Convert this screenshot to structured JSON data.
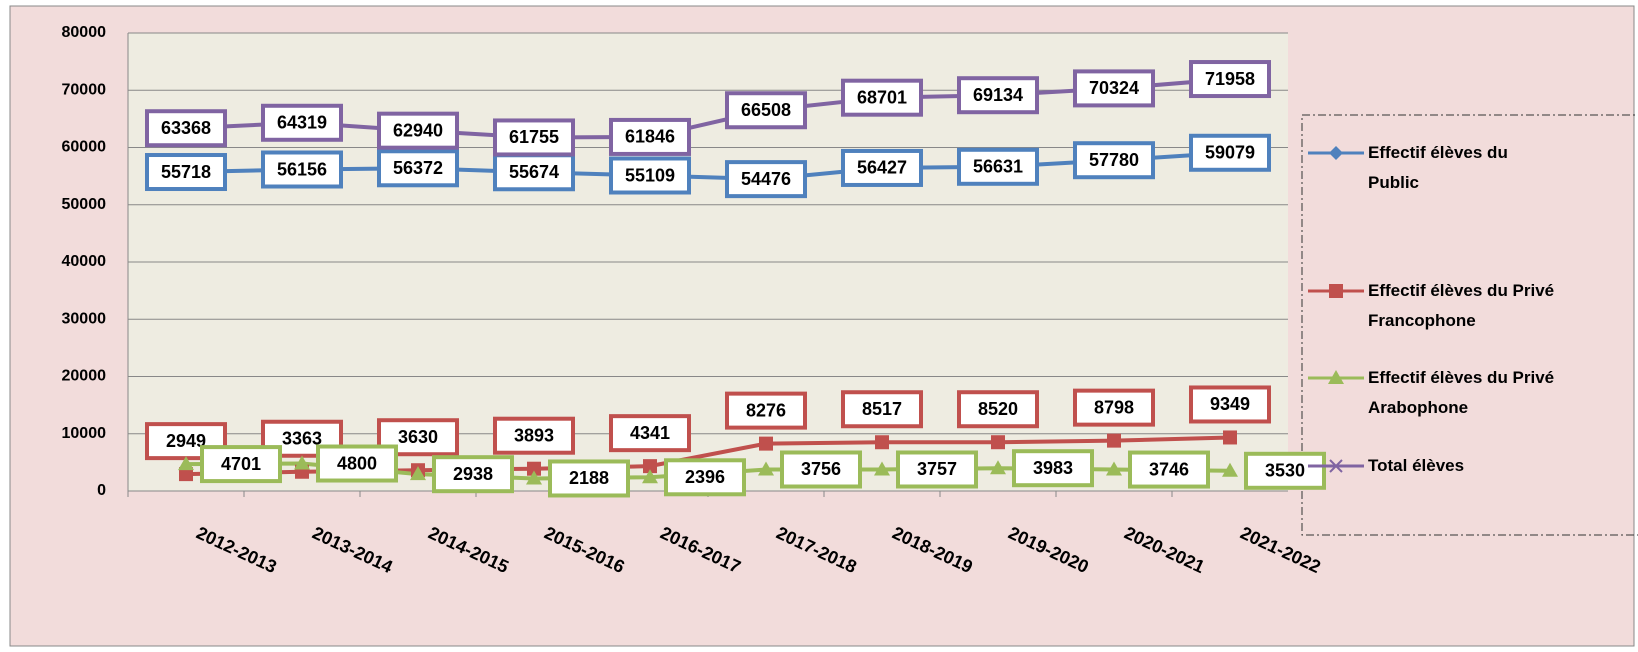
{
  "chart_data": {
    "type": "line",
    "categories": [
      "2012-2013",
      "2013-2014",
      "2014-2015",
      "2015-2016",
      "2016-2017",
      "2017-2018",
      "2018-2019",
      "2019-2020",
      "2020-2021",
      "2021-2022"
    ],
    "series": [
      {
        "name": "Effectif élèves du Public",
        "color": "#4f81bd",
        "marker": "diamond",
        "values": [
          55718,
          56156,
          56372,
          55674,
          55109,
          54476,
          56427,
          56631,
          57780,
          59079
        ]
      },
      {
        "name": "Effectif élèves du Privé Francophone",
        "color": "#c0504d",
        "marker": "square",
        "values": [
          2949,
          3363,
          3630,
          3893,
          4341,
          8276,
          8517,
          8520,
          8798,
          9349
        ]
      },
      {
        "name": "Effectif élèves du Privé Arabophone",
        "color": "#9bbb59",
        "marker": "triangle",
        "values": [
          4701,
          4800,
          2938,
          2188,
          2396,
          3756,
          3757,
          3983,
          3746,
          3530
        ]
      },
      {
        "name": "Total élèves",
        "color": "#8064a2",
        "marker": "x",
        "values": [
          63368,
          64319,
          62940,
          61755,
          61846,
          66508,
          68701,
          69134,
          70324,
          71958
        ]
      }
    ],
    "ylim": [
      0,
      80000
    ],
    "yticks": [
      0,
      10000,
      20000,
      30000,
      40000,
      50000,
      60000,
      70000,
      80000
    ],
    "grid": true,
    "legend": "right"
  }
}
